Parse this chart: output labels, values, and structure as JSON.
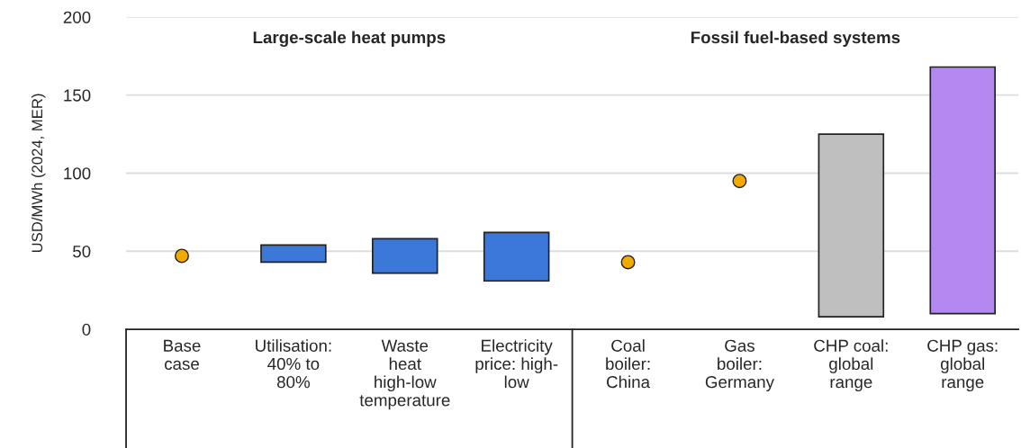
{
  "chart_data": {
    "type": "bar",
    "ylabel": "USD/MWh (2024, MER)",
    "categories": [
      "Base\ncase",
      "Utilisation:\n40% to\n80%",
      "Waste\nheat\nhigh-low\ntemperature",
      "Electricity\nprice: high-\nlow",
      "Coal\nboiler:\nChina",
      "Gas\nboiler:\nGermany",
      "CHP coal:\nglobal\nrange",
      "CHP gas:\nglobal\nrange"
    ],
    "series": [
      {
        "values": [
          null,
          11,
          22,
          31,
          null,
          null,
          117,
          158
        ],
        "base": [
          null,
          43,
          36,
          31,
          null,
          null,
          8,
          10
        ],
        "colors": [
          "#3c78d8",
          "#3c78d8",
          "#3c78d8",
          "#3c78d8",
          "#3c78d8",
          "#3c78d8",
          "#bfbfbf",
          "#b388f0"
        ]
      },
      {
        "type": "scatter",
        "color": "#f2a900",
        "marker": "circle",
        "values": [
          47,
          null,
          null,
          null,
          43,
          95,
          null,
          null
        ]
      }
    ],
    "ylim": [
      0,
      200
    ],
    "yticks": [
      0,
      50,
      100,
      150,
      200
    ],
    "grid": "y",
    "legend": false,
    "annotations": [
      "Large-scale heat pumps",
      "Fossil fuel-based systems"
    ]
  }
}
